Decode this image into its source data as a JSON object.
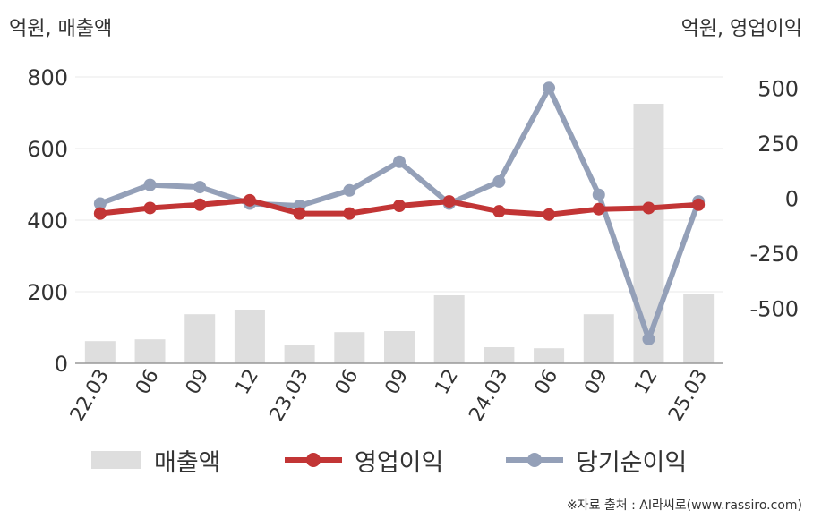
{
  "left_unit": "억원, 매출액",
  "right_unit": "억원, 영업이익",
  "source": "※자료 출처 : AI라씨로(www.rassiro.com)",
  "colors": {
    "bar": "#dedede",
    "op": "#c23535",
    "net": "#94a0b8",
    "grid": "#e8e8e8",
    "axis": "#999999",
    "text": "#333333"
  },
  "legend": [
    {
      "label": "매출액",
      "key": "revenue"
    },
    {
      "label": "영업이익",
      "key": "operating_profit"
    },
    {
      "label": "당기순이익",
      "key": "net_income"
    }
  ],
  "chart_data": {
    "type": "bar+line",
    "categories": [
      "22.03",
      "06",
      "09",
      "12",
      "23.03",
      "06",
      "09",
      "12",
      "24.03",
      "06",
      "09",
      "12",
      "25.03"
    ],
    "left_axis": {
      "ylim": [
        0,
        800
      ],
      "ticks": [
        0,
        200,
        400,
        600,
        800
      ]
    },
    "right_axis": {
      "ylim": [
        -750,
        550
      ],
      "ticks": [
        500,
        250,
        0,
        -250,
        -500
      ]
    },
    "grid": true,
    "legend_position": "bottom",
    "series": [
      {
        "name": "매출액",
        "type": "bar",
        "axis": "left",
        "values": [
          62,
          67,
          137,
          150,
          52,
          87,
          90,
          190,
          45,
          42,
          137,
          725,
          195
        ]
      },
      {
        "name": "영업이익",
        "type": "line",
        "axis": "right",
        "values": [
          -70,
          -45,
          -30,
          -10,
          -70,
          -70,
          -35,
          -15,
          -60,
          -75,
          -50,
          -45,
          -30
        ]
      },
      {
        "name": "당기순이익",
        "type": "line",
        "axis": "right",
        "values": [
          -25,
          60,
          50,
          -25,
          -35,
          35,
          165,
          -25,
          75,
          500,
          15,
          -640,
          -15
        ]
      }
    ]
  }
}
